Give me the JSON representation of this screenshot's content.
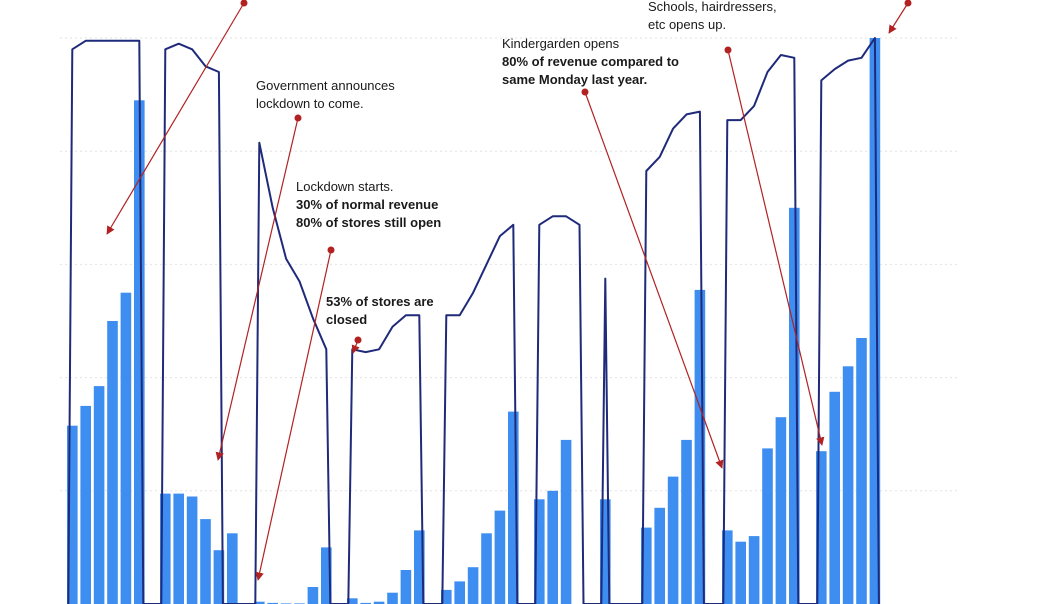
{
  "chart_data": {
    "type": "bar",
    "ylim": [
      0,
      100
    ],
    "grid": true,
    "colors": {
      "bars": "#3d8ef0",
      "line": "#1f2a7a",
      "arrows": "#b22222",
      "grid": "#e2e2e2"
    },
    "bars": {
      "groups": [
        [
          31.5,
          35,
          38.5,
          50,
          55,
          89
        ],
        [
          19.5,
          19.5,
          19,
          15,
          9.5,
          12.5
        ],
        [
          0.4,
          0.2,
          0.1,
          0.1,
          3,
          10
        ],
        [
          1,
          0.2,
          0.4,
          2,
          6,
          13
        ],
        [
          2.5,
          4,
          6.5,
          12.5,
          16.5,
          34
        ],
        [
          18.5,
          20,
          29
        ],
        [
          18.5
        ],
        [
          13.5,
          17,
          22.5,
          29,
          55.5
        ],
        [
          13,
          11,
          12,
          27.5,
          33,
          70
        ],
        [
          27,
          37.5,
          42,
          47,
          100
        ]
      ]
    },
    "line": {
      "segments": [
        [
          98,
          99.5,
          99.5,
          99.5,
          99.5,
          99.5
        ],
        [
          98,
          99,
          98,
          95,
          94
        ],
        [
          81.5,
          70,
          61,
          57,
          50.5,
          45
        ],
        [
          45,
          44.5,
          45,
          49,
          51,
          51
        ],
        [
          51,
          51,
          55,
          60,
          65,
          67
        ],
        [
          67,
          68.5,
          68.5,
          67
        ],
        [
          57.5
        ],
        [
          76.5,
          79,
          84,
          86.5,
          87
        ],
        [
          85.5,
          85.5,
          88,
          94,
          97,
          96.5
        ],
        [
          92.5,
          94.5,
          96,
          96.5,
          100
        ]
      ]
    },
    "annotations": [
      {
        "lines": [
          "Government announces",
          "lockdown to come."
        ],
        "bold": []
      },
      {
        "lines": [
          "Lockdown starts."
        ],
        "bold": [
          "30% of normal revenue",
          "80% of stores still open"
        ]
      },
      {
        "lines": [],
        "bold": [
          "53% of stores are",
          "closed"
        ]
      },
      {
        "lines": [
          "Kindergarden opens"
        ],
        "bold": [
          "80% of revenue compared to",
          "same Monday last year."
        ]
      },
      {
        "lines": [
          "Schools, hairdressers,",
          "etc opens up."
        ],
        "bold": []
      }
    ]
  }
}
